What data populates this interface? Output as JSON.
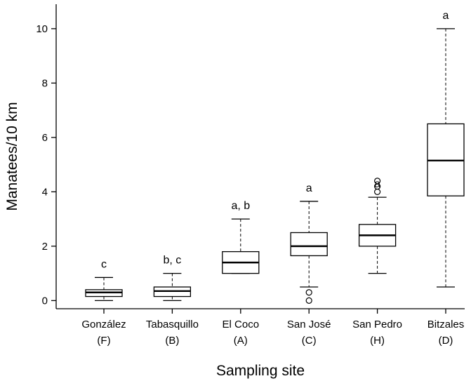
{
  "chart_data": {
    "type": "box",
    "xlabel": "Sampling site",
    "ylabel": "Manatees/10 km",
    "ylim": [
      -0.3,
      10.9
    ],
    "yticks": [
      0,
      2,
      4,
      6,
      8,
      10
    ],
    "grid": false,
    "categories": [
      {
        "name": "González",
        "code": "(F)",
        "sig": "c",
        "whisker_low": 0.0,
        "q1": 0.15,
        "median": 0.3,
        "q3": 0.4,
        "whisker_high": 0.85,
        "outliers": []
      },
      {
        "name": "Tabasquillo",
        "code": "(B)",
        "sig": "b, c",
        "whisker_low": 0.0,
        "q1": 0.15,
        "median": 0.35,
        "q3": 0.5,
        "whisker_high": 1.0,
        "outliers": []
      },
      {
        "name": "El Coco",
        "code": "(A)",
        "sig": "a, b",
        "whisker_low": 1.0,
        "q1": 1.0,
        "median": 1.4,
        "q3": 1.8,
        "whisker_high": 3.0,
        "outliers": []
      },
      {
        "name": "San José",
        "code": "(C)",
        "sig": "a",
        "whisker_low": 0.5,
        "q1": 1.65,
        "median": 2.0,
        "q3": 2.5,
        "whisker_high": 3.65,
        "outliers": [
          0.3,
          0.0
        ]
      },
      {
        "name": "San Pedro",
        "code": "(H)",
        "sig": "a",
        "whisker_low": 1.0,
        "q1": 2.0,
        "median": 2.4,
        "q3": 2.8,
        "whisker_high": 3.8,
        "outliers": [
          4.0,
          4.2,
          4.4
        ]
      },
      {
        "name": "Bitzales",
        "code": "(D)",
        "sig": "a",
        "whisker_low": 0.5,
        "q1": 3.85,
        "median": 5.15,
        "q3": 6.5,
        "whisker_high": 10.0,
        "outliers": []
      }
    ]
  }
}
